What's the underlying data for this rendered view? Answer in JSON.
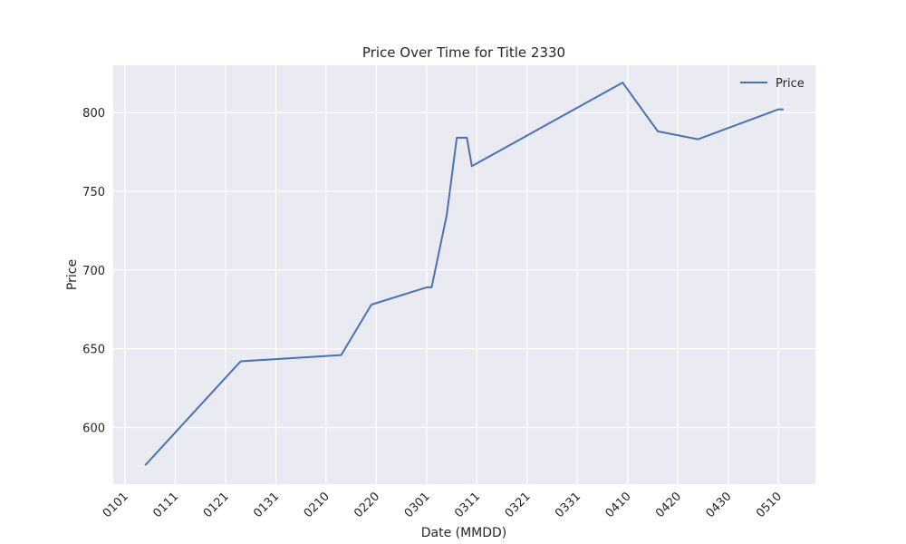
{
  "chart_data": {
    "type": "line",
    "title": "Price Over Time for Title 2330",
    "xlabel": "Date (MMDD)",
    "ylabel": "Price",
    "x_tick_labels": [
      "0101",
      "0111",
      "0121",
      "0131",
      "0210",
      "0220",
      "0301",
      "0311",
      "0321",
      "0331",
      "0410",
      "0420",
      "0430",
      "0510"
    ],
    "y_ticks": [
      600,
      650,
      700,
      750,
      800
    ],
    "ylim": [
      564,
      830
    ],
    "grid": true,
    "legend_position": "top-right",
    "colors": {
      "background": "#eaeaf2",
      "grid": "#ffffff",
      "line": "#4c72b0"
    },
    "series": [
      {
        "name": "Price",
        "points": [
          {
            "x": "0105",
            "y": 576
          },
          {
            "x": "0124",
            "y": 642
          },
          {
            "x": "0213",
            "y": 646
          },
          {
            "x": "0219",
            "y": 678
          },
          {
            "x": "0301",
            "y": 689
          },
          {
            "x": "0302",
            "y": 689
          },
          {
            "x": "0305",
            "y": 735
          },
          {
            "x": "0307",
            "y": 784
          },
          {
            "x": "0309",
            "y": 784
          },
          {
            "x": "0310",
            "y": 766
          },
          {
            "x": "0409",
            "y": 819
          },
          {
            "x": "0416",
            "y": 788
          },
          {
            "x": "0424",
            "y": 783
          },
          {
            "x": "0510",
            "y": 802
          },
          {
            "x": "0511",
            "y": 802
          }
        ]
      }
    ]
  }
}
